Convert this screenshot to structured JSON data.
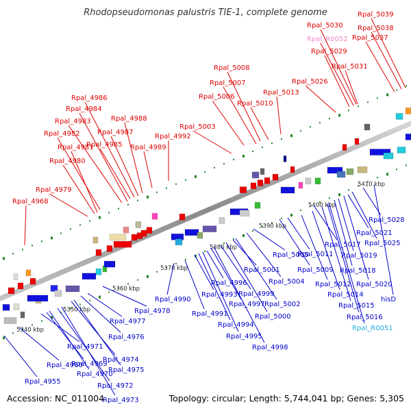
{
  "title": "Rhodopseudomonas palustris TIE-1, complete genome",
  "accession": "Accession: NC_011004",
  "topology": "Topology: circular; Length: 5,744,041 bp; Genes: 5,305",
  "colors": {
    "top_label": "#dd0000",
    "bottom_label": "#0000cc",
    "rna_top": "#ee88cc",
    "rna_bottom": "#22aadd",
    "axis": "#999999",
    "dots": "#228822"
  },
  "kbp_labels": [
    "5340 kbp",
    "5350 kbp",
    "5360 kbp",
    "5370 kbp",
    "5380 kbp",
    "5390 kbp",
    "5400 kbp",
    "5410 kbp"
  ],
  "top_labels": [
    "Rpal_4968",
    "Rpal_4979",
    "Rpal_4980",
    "Rpal_4981",
    "Rpal_4982",
    "Rpal_4983",
    "Rpal_4984",
    "Rpal_4986",
    "Rpal_4985",
    "Rpal_4987",
    "Rpal_4988",
    "Rpal_4989",
    "Rpal_4992",
    "Rpal_5003",
    "Rpal_5006",
    "Rpal_5007",
    "Rpal_5008",
    "Rpal_5010",
    "Rpal_5013",
    "Rpal_5026",
    "Rpal_5029",
    "Rpal_R0052",
    "Rpal_5030",
    "Rpal_5031",
    "Rpal_5037",
    "Rpal_5038",
    "Rpal_5039"
  ],
  "bottom_labels": [
    "Rpal_4955",
    "Rpal_4960",
    "Rpal_4969",
    "Rpal_4970",
    "Rpal_4971",
    "Rpal_4972",
    "Rpal_4973",
    "Rpal_4974",
    "Rpal_4975",
    "Rpal_4976",
    "Rpal_4977",
    "Rpal_4978",
    "Rpal_4990",
    "Rpal_4991",
    "Rpal_4993",
    "Rpal_4994",
    "Rpal_4995",
    "Rpal_4996",
    "Rpal_4997",
    "Rpal_4998",
    "Rpal_4999",
    "Rpal_5000",
    "Rpal_5001",
    "Rpal_5002",
    "Rpal_5004",
    "Rpal_5005",
    "Rpal_5009",
    "Rpal_5011",
    "Rpal_5012",
    "Rpal_5014",
    "Rpal_5015",
    "Rpal_5016",
    "Rpal_R0051",
    "Rpal_5017",
    "Rpal_5018",
    "Rpal_5019",
    "Rpal_5020",
    "Rpal_5021",
    "Rpal_5025",
    "Rpal_5028",
    "hisD"
  ]
}
